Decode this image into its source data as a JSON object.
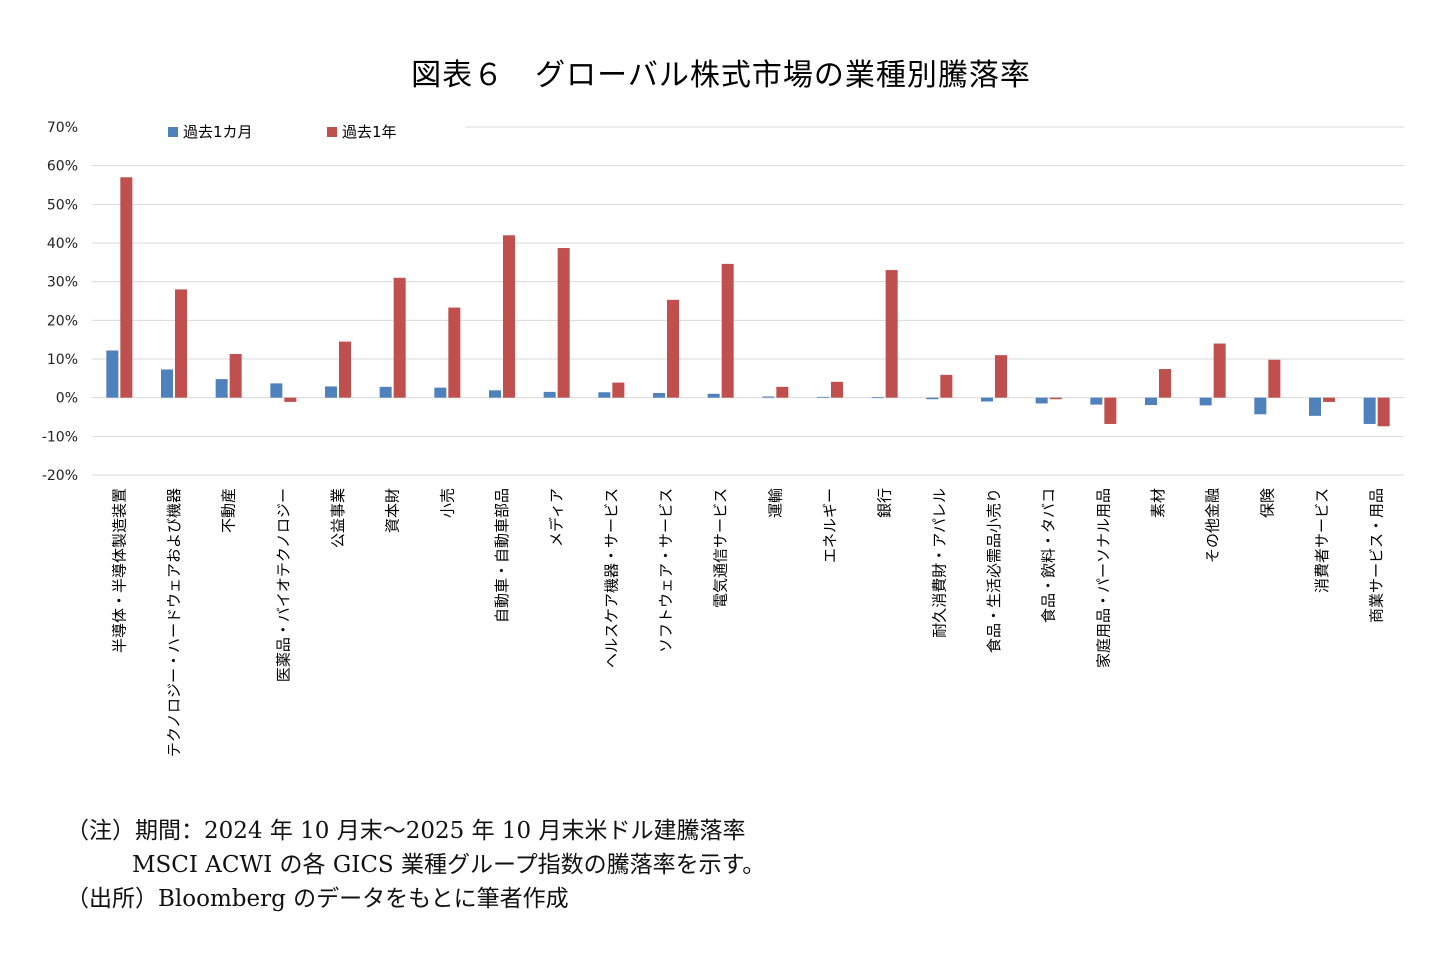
{
  "title": "図表６　グローバル株式市場の業種別騰落率",
  "chart_data": {
    "type": "bar",
    "categories": [
      "半導体・半導体製造装置",
      "テクノロジー・ハードウェアおよび機器",
      "不動産",
      "医薬品・バイオテクノロジー",
      "公益事業",
      "資本財",
      "小売",
      "自動車・自動車部品",
      "メディア",
      "ヘルスケア機器・サービス",
      "ソフトウェア・サービス",
      "電気通信サービス",
      "運輸",
      "エネルギー",
      "銀行",
      "耐久消費財・アパレル",
      "食品・生活必需品小売り",
      "食品・飲料・タバコ",
      "家庭用品・パーソナル用品",
      "素材",
      "その他金融",
      "保険",
      "消費者サービス",
      "商業サービス・用品"
    ],
    "series": [
      {
        "name": "過去1カ月",
        "color": "#4F81BD",
        "values": [
          12.2,
          7.3,
          4.8,
          3.7,
          2.9,
          2.8,
          2.6,
          1.9,
          1.5,
          1.4,
          1.2,
          1.0,
          0.3,
          0.2,
          0.1,
          -0.4,
          -1.0,
          -1.5,
          -1.8,
          -1.9,
          -2.0,
          -4.3,
          -4.7,
          -6.8
        ]
      },
      {
        "name": "過去1年",
        "color": "#C0504D",
        "values": [
          57.0,
          28.0,
          11.3,
          -1.1,
          14.5,
          31.0,
          23.3,
          42.0,
          38.7,
          3.9,
          25.3,
          34.6,
          2.8,
          4.1,
          33.0,
          5.9,
          11.0,
          -0.4,
          -6.8,
          7.4,
          14.0,
          9.8,
          -1.1,
          -7.4
        ]
      }
    ],
    "ylim": [
      -20,
      70
    ],
    "yticks": [
      -20,
      -10,
      0,
      10,
      20,
      30,
      40,
      50,
      60,
      70
    ],
    "ytick_labels": [
      "-20%",
      "-10%",
      "0%",
      "10%",
      "20%",
      "30%",
      "40%",
      "50%",
      "60%",
      "70%"
    ],
    "grid": true,
    "legend": "top-left"
  },
  "notes": [
    "（注）期間：2024 年 10 月末～2025 年 10 月末米ドル建騰落率",
    "MSCI ACWI の各 GICS 業種グループ指数の騰落率を示す。",
    "（出所）Bloomberg のデータをもとに筆者作成"
  ]
}
